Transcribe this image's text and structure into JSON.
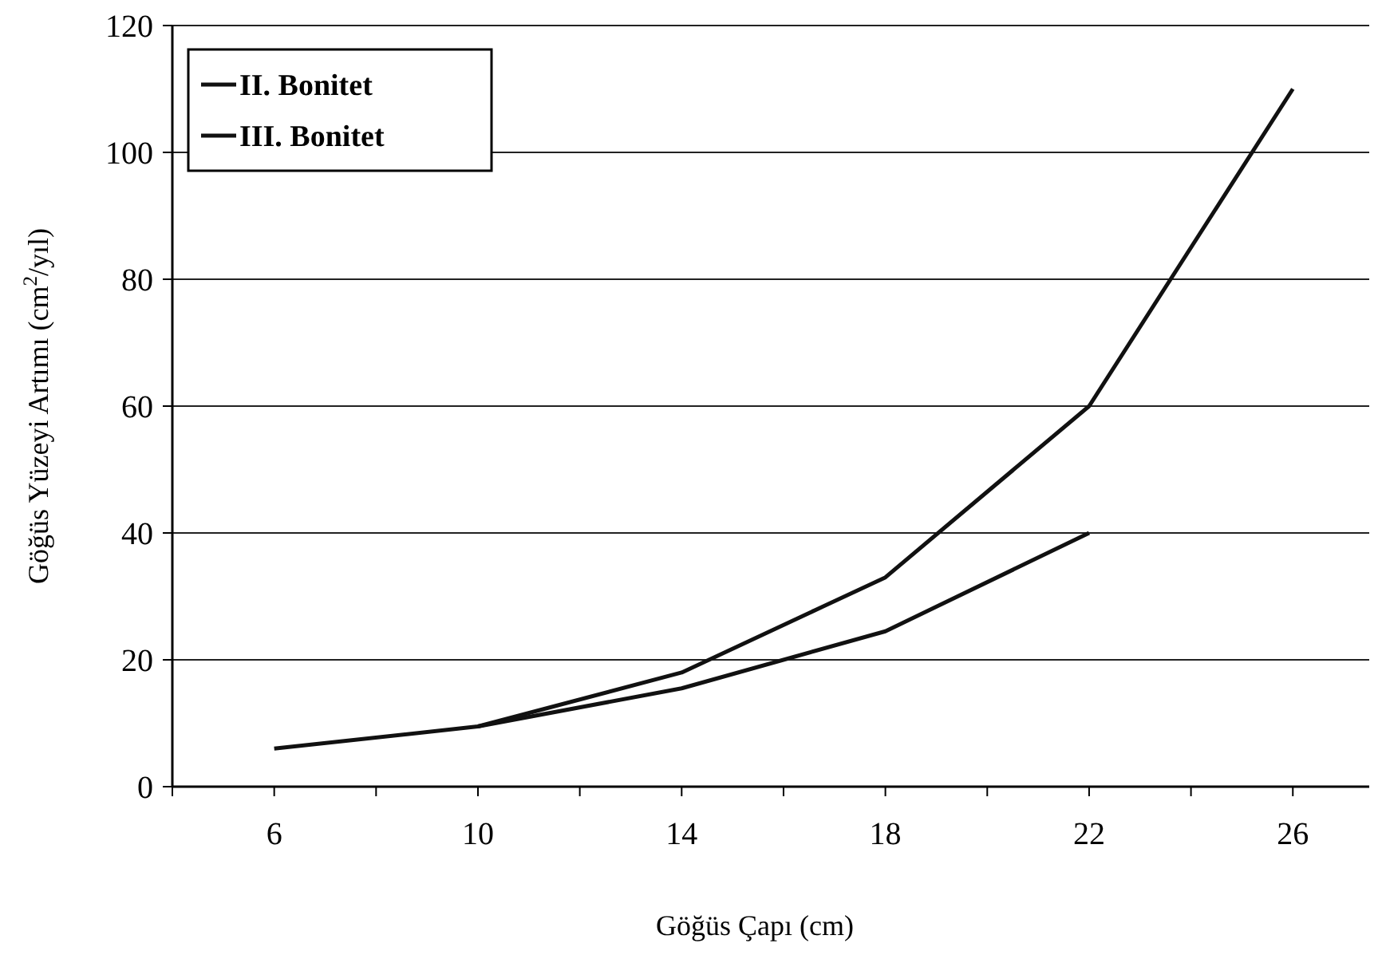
{
  "chart_data": {
    "type": "line",
    "xlabel": "Göğüs Çapı (cm)",
    "ylabel": "Göğüs Yüzeyi Artımı (cm$^{2}$/yıl)",
    "xlim": [
      4,
      27.5
    ],
    "xticks": [
      {
        "value": 4,
        "label": null
      },
      6,
      {
        "value": 8,
        "label": null
      },
      10,
      {
        "value": 12,
        "label": null
      },
      14,
      {
        "value": 16,
        "label": null
      },
      18,
      {
        "value": 20,
        "label": null
      },
      22,
      {
        "value": 24,
        "label": null
      },
      26
    ],
    "ylim": [
      0,
      120
    ],
    "yticks": [
      0,
      20,
      40,
      60,
      80,
      100,
      120
    ],
    "grid": "y",
    "legend": "top left",
    "marker": "none",
    "line_style": "solid",
    "series": [
      {
        "name": "II. Bonitet",
        "color": "#111111",
        "x": [
          10,
          14,
          18,
          22,
          26
        ],
        "values": [
          9.5,
          18,
          33,
          60,
          110
        ]
      },
      {
        "name": "III. Bonitet",
        "color": "#111111",
        "x": [
          6,
          10,
          14,
          18,
          22
        ],
        "values": [
          6,
          9.5,
          15.5,
          24.5,
          40
        ]
      }
    ]
  }
}
